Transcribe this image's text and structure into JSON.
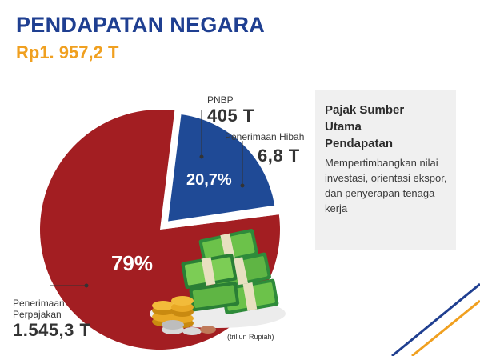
{
  "header": {
    "title": "PENDAPATAN NEGARA",
    "total": "Rp1. 957,2 T"
  },
  "chart_data": {
    "type": "pie",
    "title": "PENDAPATAN NEGARA",
    "slices": [
      {
        "name": "Penerimaan Perpajakan",
        "name_lines": [
          "Penerimaan",
          "Perpajakan"
        ],
        "value": 1545.3,
        "value_label": "1.545,3 T",
        "percent_label": "79%",
        "color": "#a31e22"
      },
      {
        "name": "PNBP",
        "value": 405,
        "value_label": "405 T",
        "percent_label": "20,7%",
        "color": "#1f4a96"
      },
      {
        "name": "Penerimaan Hibah",
        "value": 6.8,
        "value_label": "6,8 T",
        "percent_label": "",
        "color": "#ffffff"
      }
    ],
    "unit": "(triliun Rupiah)"
  },
  "note": {
    "title": "Pajak Sumber Utama Pendapatan",
    "body": "Mempertimbangkan nilai investasi, orientasi ekspor, dan penyerapan tenaga kerja"
  },
  "colors": {
    "title_blue": "#1f3f91",
    "accent_orange": "#f0a020",
    "tax_red": "#a31e22",
    "pnbp_blue": "#1f4a96"
  },
  "illustration": "money-stack-icon"
}
